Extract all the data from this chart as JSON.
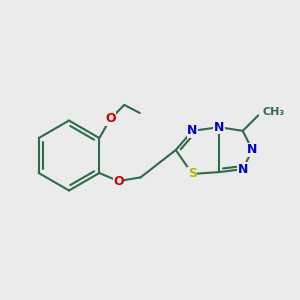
{
  "background_color": "#ebebeb",
  "bond_color": "#2d6b4a",
  "bond_width": 1.5,
  "atom_colors": {
    "N": "#0000cc",
    "O": "#cc0000",
    "S": "#b8b800",
    "C": "#2d6b4a"
  },
  "font_size": 9,
  "fig_width": 3.0,
  "fig_height": 3.0,
  "dpi": 100
}
